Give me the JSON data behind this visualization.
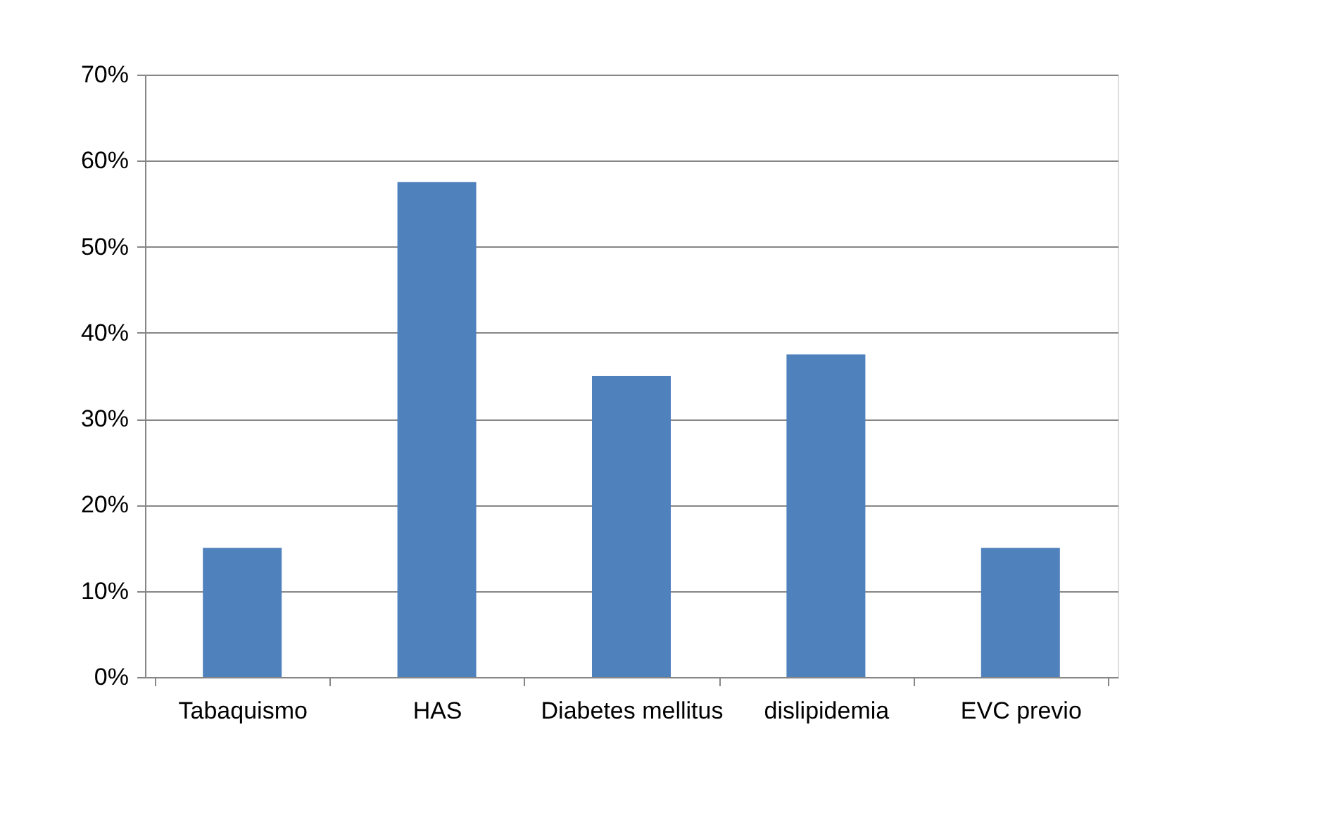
{
  "chart_data": {
    "type": "bar",
    "categories": [
      "Tabaquismo",
      "HAS",
      "Diabetes mellitus",
      "dislipidemia",
      "EVC previo"
    ],
    "values": [
      15,
      57.5,
      35,
      37.5,
      15
    ],
    "color": "#4f81bd",
    "ylim": [
      0,
      70
    ],
    "yticks": [
      {
        "value": 0,
        "label": "0%"
      },
      {
        "value": 10,
        "label": "10%"
      },
      {
        "value": 20,
        "label": "20%"
      },
      {
        "value": 30,
        "label": "30%"
      },
      {
        "value": 40,
        "label": "40%"
      },
      {
        "value": 50,
        "label": "50%"
      },
      {
        "value": 60,
        "label": "60%"
      },
      {
        "value": 70,
        "label": "70%"
      }
    ],
    "grid": "y"
  }
}
